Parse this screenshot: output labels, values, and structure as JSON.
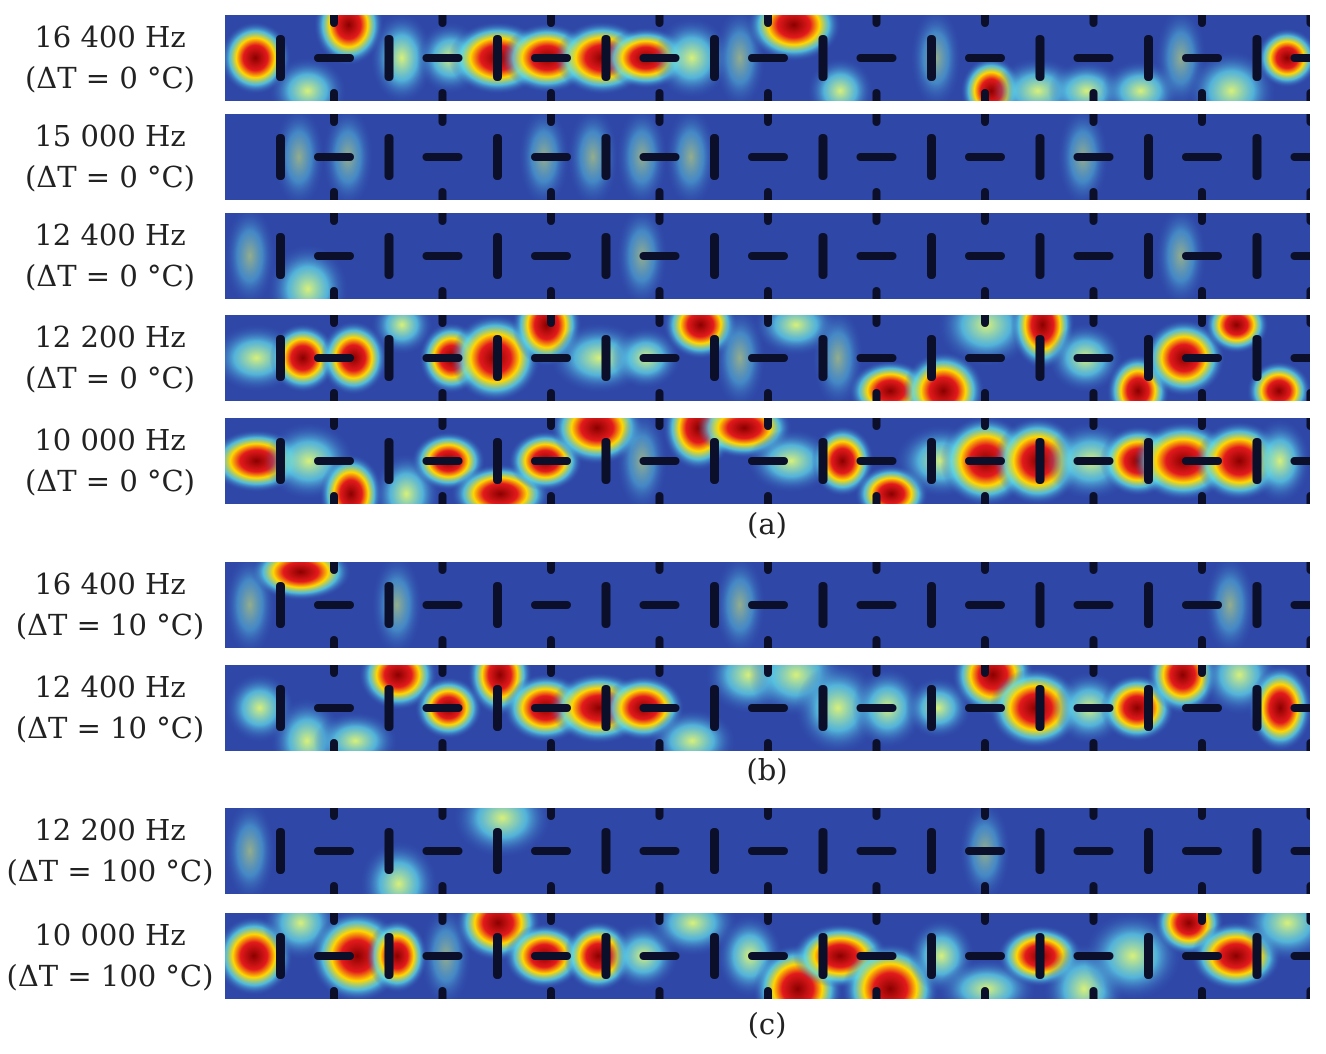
{
  "panels": [
    {
      "caption": "(a)",
      "rows": [
        {
          "freq": "16 400 Hz",
          "dt": "(ΔT = 0 °C)",
          "activity": 0.75
        },
        {
          "freq": "15 000 Hz",
          "dt": "(ΔT = 0 °C)",
          "activity": 0.05
        },
        {
          "freq": "12 400 Hz",
          "dt": "(ΔT = 0 °C)",
          "activity": 0.3
        },
        {
          "freq": "12 200 Hz",
          "dt": "(ΔT = 0 °C)",
          "activity": 0.9
        },
        {
          "freq": "10 000 Hz",
          "dt": "(ΔT = 0 °C)",
          "activity": 0.85
        }
      ]
    },
    {
      "caption": "(b)",
      "rows": [
        {
          "freq": "16 400 Hz",
          "dt": "(ΔT = 10 °C)",
          "activity": 0.08
        },
        {
          "freq": "12 400 Hz",
          "dt": "(ΔT = 10 °C)",
          "activity": 1.0
        }
      ]
    },
    {
      "caption": "(c)",
      "rows": [
        {
          "freq": "12 200 Hz",
          "dt": "(ΔT = 100 °C)",
          "activity": 0.3
        },
        {
          "freq": "10 000 Hz",
          "dt": "(ΔT = 100 °C)",
          "activity": 0.9
        }
      ]
    }
  ]
}
